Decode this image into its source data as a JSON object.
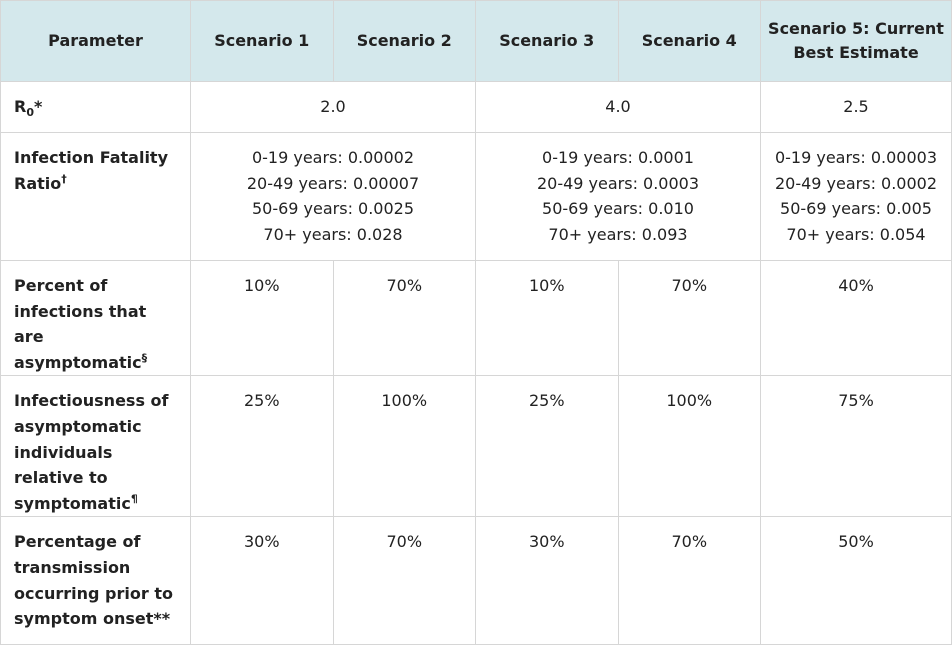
{
  "header": {
    "parameter": "Parameter",
    "scenario1": "Scenario 1",
    "scenario2": "Scenario 2",
    "scenario3": "Scenario 3",
    "scenario4": "Scenario 4",
    "scenario5": "Scenario 5: Current Best Estimate"
  },
  "rows": {
    "r0": {
      "label": "R",
      "label_sub": "0",
      "label_mark": "*",
      "s12": "2.0",
      "s34": "4.0",
      "s5": "2.5"
    },
    "ifr": {
      "label": "Infection Fatality Ratio",
      "label_mark": "†",
      "s12": [
        "0-19 years: 0.00002",
        "20-49 years: 0.00007",
        "50-69 years: 0.0025",
        "70+ years: 0.028"
      ],
      "s34": [
        "0-19 years: 0.0001",
        "20-49 years: 0.0003",
        "50-69 years: 0.010",
        "70+ years: 0.093"
      ],
      "s5": [
        "0-19 years: 0.00003",
        "20-49 years: 0.0002",
        "50-69 years: 0.005",
        "70+ years: 0.054"
      ]
    },
    "asymptomatic": {
      "label": "Percent of infections that are asymptomatic",
      "label_mark": "§",
      "s1": "10%",
      "s2": "70%",
      "s3": "10%",
      "s4": "70%",
      "s5": "40%"
    },
    "infectiousness": {
      "label": "Infectiousness of asymptomatic individuals relative to symptomatic",
      "label_mark": "¶",
      "s1": "25%",
      "s2": "100%",
      "s3": "25%",
      "s4": "100%",
      "s5": "75%"
    },
    "presymptomatic": {
      "label": "Percentage of transmission occurring prior to symptom onset",
      "label_mark": "**",
      "s1": "30%",
      "s2": "70%",
      "s3": "30%",
      "s4": "70%",
      "s5": "50%"
    }
  }
}
